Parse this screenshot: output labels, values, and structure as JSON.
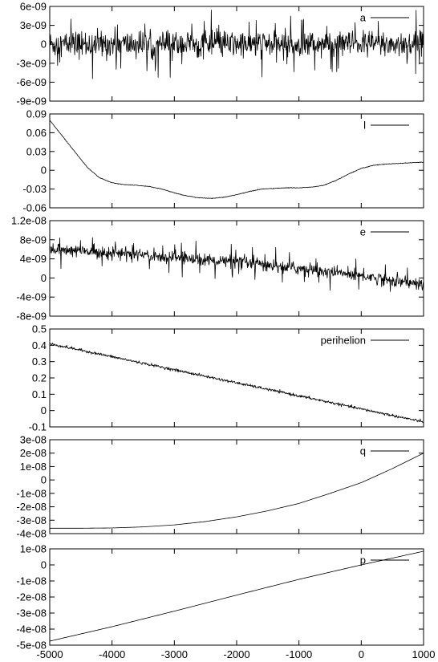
{
  "chart_data": [
    {
      "type": "line",
      "legend": "a",
      "x": [
        -5000,
        -4000,
        -3000,
        -2000,
        -1000,
        0,
        1000
      ],
      "y": [
        0,
        0,
        0,
        0,
        0,
        0,
        0
      ],
      "noise": 1.8e-09,
      "spike": 5.5e-09,
      "xlim": [
        -5000,
        1000
      ],
      "ylim": [
        -9e-09,
        6e-09
      ],
      "yticks": [
        -9e-09,
        -6e-09,
        -3e-09,
        0,
        3e-09,
        6e-09
      ],
      "ytick_labels": [
        "-9e-09",
        "-6e-09",
        "-3e-09",
        "0",
        "3e-09",
        "6e-09"
      ]
    },
    {
      "type": "line",
      "legend": "l",
      "x": [
        -5000,
        -4800,
        -4600,
        -4400,
        -4200,
        -4000,
        -3800,
        -3600,
        -3400,
        -3200,
        -3000,
        -2800,
        -2600,
        -2400,
        -2200,
        -2000,
        -1800,
        -1600,
        -1400,
        -1200,
        -1000,
        -800,
        -600,
        -400,
        -200,
        0,
        200,
        400,
        600,
        800,
        1000
      ],
      "y": [
        0.08,
        0.055,
        0.03,
        0.005,
        -0.012,
        -0.02,
        -0.023,
        -0.024,
        -0.026,
        -0.03,
        -0.036,
        -0.041,
        -0.044,
        -0.045,
        -0.043,
        -0.039,
        -0.034,
        -0.03,
        -0.029,
        -0.028,
        -0.028,
        -0.027,
        -0.024,
        -0.016,
        -0.006,
        0.003,
        0.008,
        0.01,
        0.011,
        0.012,
        0.013
      ],
      "noise": 0.0004,
      "spike": 0,
      "xlim": [
        -5000,
        1000
      ],
      "ylim": [
        -0.06,
        0.09
      ],
      "yticks": [
        -0.06,
        -0.03,
        0,
        0.03,
        0.06,
        0.09
      ],
      "ytick_labels": [
        "-0.06",
        "-0.03",
        "0",
        "0.03",
        "0.06",
        "0.09"
      ]
    },
    {
      "type": "line",
      "legend": "e",
      "x": [
        -5000,
        -4000,
        -3000,
        -2000,
        -1000,
        0,
        1000
      ],
      "y": [
        6e-09,
        5.3e-09,
        4.3e-09,
        3.3e-09,
        2e-09,
        5e-10,
        -1.5e-09
      ],
      "noise": 1.1e-09,
      "spike": 4e-09,
      "xlim": [
        -5000,
        1000
      ],
      "ylim": [
        -8e-09,
        1.2e-08
      ],
      "yticks": [
        -8e-09,
        -4e-09,
        0,
        4e-09,
        8e-09,
        1.2e-08
      ],
      "ytick_labels": [
        "-8e-09",
        "-4e-09",
        "0",
        "4e-09",
        "8e-09",
        "1.2e-08"
      ]
    },
    {
      "type": "line",
      "legend": "perihelion",
      "x": [
        -5000,
        -4000,
        -3000,
        -2000,
        -1000,
        0,
        1000
      ],
      "y": [
        0.41,
        0.33,
        0.25,
        0.17,
        0.09,
        0.01,
        -0.07
      ],
      "noise": 0.007,
      "spike": 0,
      "xlim": [
        -5000,
        1000
      ],
      "ylim": [
        -0.1,
        0.5
      ],
      "yticks": [
        -0.1,
        0,
        0.1,
        0.2,
        0.3,
        0.4,
        0.5
      ],
      "ytick_labels": [
        "-0.1",
        "0",
        "0.1",
        "0.2",
        "0.3",
        "0.4",
        "0.5"
      ]
    },
    {
      "type": "line",
      "legend": "q",
      "x": [
        -5000,
        -4500,
        -4000,
        -3500,
        -3000,
        -2500,
        -2000,
        -1500,
        -1000,
        -500,
        0,
        500,
        1000
      ],
      "y": [
        -3.6e-08,
        -3.6e-08,
        -3.58e-08,
        -3.5e-08,
        -3.35e-08,
        -3.1e-08,
        -2.75e-08,
        -2.3e-08,
        -1.75e-08,
        -1e-08,
        -2e-09,
        8.5e-09,
        2e-08
      ],
      "noise": 0,
      "spike": 0,
      "xlim": [
        -5000,
        1000
      ],
      "ylim": [
        -4e-08,
        3e-08
      ],
      "yticks": [
        -4e-08,
        -3e-08,
        -2e-08,
        -1e-08,
        0,
        1e-08,
        2e-08,
        3e-08
      ],
      "ytick_labels": [
        "-4e-08",
        "-3e-08",
        "-2e-08",
        "-1e-08",
        "0",
        "1e-08",
        "2e-08",
        "3e-08"
      ]
    },
    {
      "type": "line",
      "legend": "p",
      "x": [
        -5000,
        -4000,
        -3000,
        -2000,
        -1000,
        0,
        1000
      ],
      "y": [
        -4.75e-08,
        -3.85e-08,
        -2.88e-08,
        -1.88e-08,
        -9e-09,
        0,
        8.5e-09
      ],
      "noise": 0,
      "spike": 0,
      "xlim": [
        -5000,
        1000
      ],
      "ylim": [
        -5e-08,
        1e-08
      ],
      "yticks": [
        -5e-08,
        -4e-08,
        -3e-08,
        -2e-08,
        -1e-08,
        0,
        1e-08
      ],
      "ytick_labels": [
        "-5e-08",
        "-4e-08",
        "-3e-08",
        "-2e-08",
        "-1e-08",
        "0",
        "1e-08"
      ]
    }
  ],
  "xaxis": {
    "ticks": [
      -5000,
      -4000,
      -3000,
      -2000,
      -1000,
      0,
      1000
    ],
    "tick_labels": [
      "-5000",
      "-4000",
      "-3000",
      "-2000",
      "-1000",
      "0",
      "1000"
    ]
  }
}
